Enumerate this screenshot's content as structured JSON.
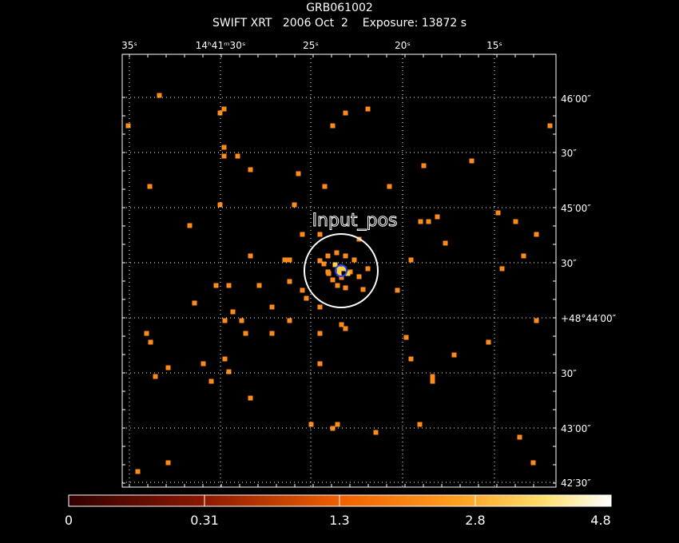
{
  "header": {
    "title": "GRB061002",
    "subtitle_instrument": "SWIFT XRT",
    "subtitle_date": "2006 Oct  2",
    "subtitle_exposure": "Exposure: 13872 s"
  },
  "ra_labels": [
    "35ˢ",
    "14ʰ41ᵐ30ˢ",
    "25ˢ",
    "20ˢ",
    "15ˢ"
  ],
  "dec_labels": [
    "46′00″",
    "30″",
    "45′00″",
    "30″",
    "+48°44′00″",
    "30″",
    "43′00″",
    "42′30″"
  ],
  "source_label": "Input_pos",
  "colorbar": {
    "tick_labels": [
      "0",
      "0.31",
      "1.3",
      "2.8",
      "4.8"
    ],
    "colors": [
      "#3a0000",
      "#a02800",
      "#ff8000",
      "#ffd040",
      "#ffffff"
    ]
  },
  "photon_color": "#ff8c1a",
  "bright_color": "#ffd040"
}
